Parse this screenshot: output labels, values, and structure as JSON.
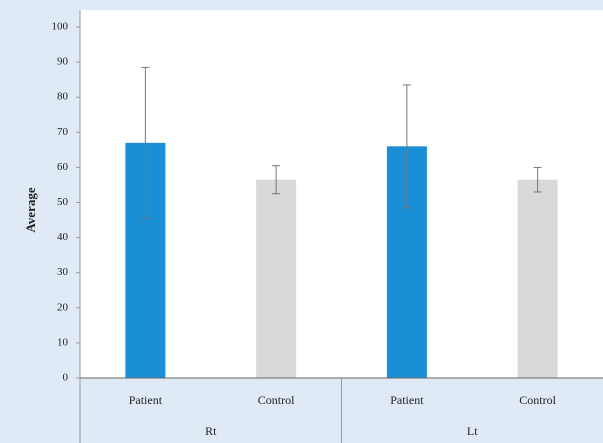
{
  "chart_data": {
    "type": "bar",
    "y_label": "Average",
    "groups": [
      "Rt",
      "Lt"
    ],
    "categories": [
      "Patient",
      "Control",
      "Patient",
      "Control"
    ],
    "values": [
      67,
      56.5,
      66,
      56.5
    ],
    "errors": [
      21.5,
      4,
      17.5,
      3.5
    ],
    "colors": [
      "#1a8fd6",
      "#d9d9d9",
      "#1a8fd6",
      "#d9d9d9"
    ],
    "ylim": [
      0,
      100
    ],
    "yticks": [
      0,
      10,
      20,
      30,
      40,
      50,
      60,
      70,
      80,
      90,
      100
    ]
  }
}
